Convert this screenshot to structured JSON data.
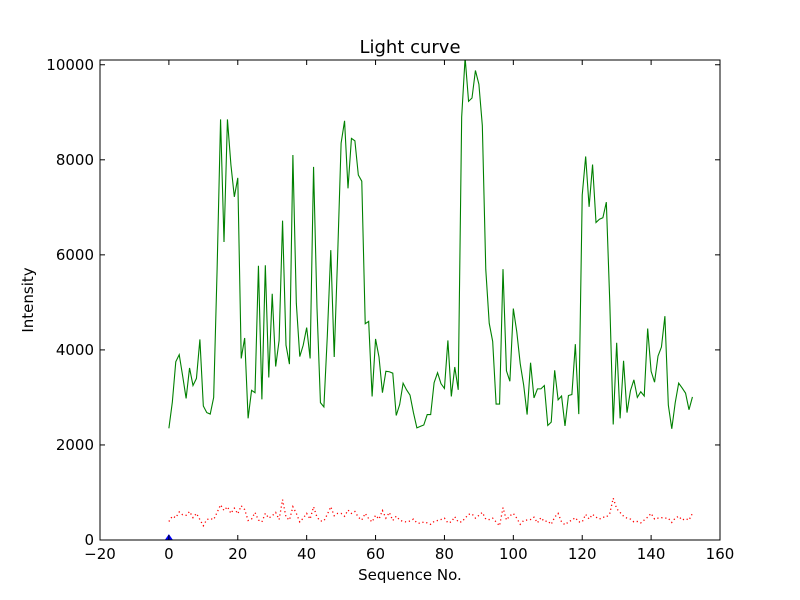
{
  "chart_data": {
    "type": "line",
    "title": "Light curve",
    "xlabel": "Sequence No.",
    "ylabel": "Intensity",
    "xlim": [
      -20,
      160
    ],
    "ylim": [
      0,
      10100
    ],
    "xticks": [
      -20,
      0,
      20,
      40,
      60,
      80,
      100,
      120,
      140,
      160
    ],
    "yticks": [
      0,
      2000,
      4000,
      6000,
      8000,
      10000
    ],
    "grid": false,
    "legend": "none",
    "series": [
      {
        "color": "#008000",
        "style": "solid",
        "x": [
          0,
          1,
          2,
          3,
          4,
          5,
          6,
          7,
          8,
          9,
          10,
          11,
          12,
          13,
          14,
          15,
          16,
          17,
          18,
          19,
          20,
          21,
          22,
          23,
          24,
          25,
          26,
          27,
          28,
          29,
          30,
          31,
          32,
          33,
          34,
          35,
          36,
          37,
          38,
          39,
          40,
          41,
          42,
          43,
          44,
          45,
          46,
          47,
          48,
          49,
          50,
          51,
          52,
          53,
          54,
          55,
          56,
          57,
          58,
          59,
          60,
          61,
          62,
          63,
          64,
          65,
          66,
          67,
          68,
          69,
          70,
          71,
          72,
          73,
          74,
          75,
          76,
          77,
          78,
          79,
          80,
          81,
          82,
          83,
          84,
          85,
          86,
          87,
          88,
          89,
          90,
          91,
          92,
          93,
          94,
          95,
          96,
          97,
          98,
          99,
          100,
          101,
          102,
          103,
          104,
          105,
          106,
          107,
          108,
          109,
          110,
          111,
          112,
          113,
          114,
          115,
          116,
          117,
          118,
          119,
          120,
          121,
          122,
          123,
          124,
          125,
          126,
          127,
          128,
          129,
          130,
          131,
          132,
          133,
          134,
          135,
          136,
          137,
          138,
          139,
          140,
          141,
          142,
          143,
          144,
          145,
          146,
          147,
          148,
          149,
          150,
          151,
          152
        ],
        "values": [
          2350,
          2900,
          3750,
          3900,
          3450,
          2980,
          3620,
          3250,
          3400,
          4220,
          2820,
          2680,
          2650,
          3000,
          5700,
          8850,
          6270,
          8850,
          7900,
          7220,
          7620,
          3820,
          4250,
          2560,
          3150,
          3100,
          5770,
          2960,
          5780,
          3420,
          5180,
          3650,
          4200,
          6720,
          4100,
          3700,
          8100,
          4980,
          3860,
          4100,
          4470,
          3820,
          7850,
          4880,
          2890,
          2800,
          4300,
          6100,
          3850,
          6000,
          8350,
          8820,
          7400,
          8450,
          8400,
          7680,
          7550,
          4550,
          4600,
          3020,
          4230,
          3850,
          3100,
          3550,
          3540,
          3510,
          2620,
          2850,
          3300,
          3160,
          3050,
          2680,
          2360,
          2390,
          2420,
          2640,
          2640,
          3310,
          3520,
          3290,
          3190,
          4200,
          3020,
          3640,
          3160,
          8900,
          10150,
          9230,
          9300,
          9880,
          9590,
          8720,
          5690,
          4560,
          4180,
          2860,
          2860,
          5700,
          3560,
          3340,
          4870,
          4380,
          3710,
          3260,
          2640,
          3730,
          2990,
          3180,
          3180,
          3250,
          2410,
          2480,
          3570,
          2950,
          3030,
          2400,
          3040,
          3060,
          4120,
          2650,
          7260,
          8070,
          7010,
          7900,
          6680,
          6750,
          6780,
          7110,
          5000,
          2430,
          4150,
          2560,
          3770,
          2680,
          3140,
          3370,
          3000,
          3120,
          3030,
          4450,
          3550,
          3320,
          3870,
          4060,
          4710,
          2840,
          2340,
          2890,
          3300,
          3200,
          3090,
          2740,
          3010
        ]
      },
      {
        "color": "#ff0000",
        "style": "dotted",
        "x": [
          0,
          1,
          2,
          3,
          4,
          5,
          6,
          7,
          8,
          9,
          10,
          11,
          12,
          13,
          14,
          15,
          16,
          17,
          18,
          19,
          20,
          21,
          22,
          23,
          24,
          25,
          26,
          27,
          28,
          29,
          30,
          31,
          32,
          33,
          34,
          35,
          36,
          37,
          38,
          39,
          40,
          41,
          42,
          43,
          44,
          45,
          46,
          47,
          48,
          49,
          50,
          51,
          52,
          53,
          54,
          55,
          56,
          57,
          58,
          59,
          60,
          61,
          62,
          63,
          64,
          65,
          66,
          67,
          68,
          69,
          70,
          71,
          72,
          73,
          74,
          75,
          76,
          77,
          78,
          79,
          80,
          81,
          82,
          83,
          84,
          85,
          86,
          87,
          88,
          89,
          90,
          91,
          92,
          93,
          94,
          95,
          96,
          97,
          98,
          99,
          100,
          101,
          102,
          103,
          104,
          105,
          106,
          107,
          108,
          109,
          110,
          111,
          112,
          113,
          114,
          115,
          116,
          117,
          118,
          119,
          120,
          121,
          122,
          123,
          124,
          125,
          126,
          127,
          128,
          129,
          130,
          131,
          132,
          133,
          134,
          135,
          136,
          137,
          138,
          139,
          140,
          141,
          142,
          143,
          144,
          145,
          146,
          147,
          148,
          149,
          150,
          151,
          152
        ],
        "values": [
          390,
          500,
          470,
          590,
          530,
          520,
          600,
          470,
          560,
          430,
          300,
          430,
          450,
          430,
          580,
          740,
          620,
          700,
          560,
          670,
          550,
          720,
          640,
          410,
          440,
          580,
          420,
          380,
          560,
          460,
          510,
          580,
          430,
          850,
          480,
          420,
          700,
          560,
          380,
          460,
          560,
          440,
          700,
          480,
          400,
          400,
          540,
          700,
          510,
          560,
          560,
          500,
          630,
          560,
          600,
          480,
          420,
          560,
          450,
          380,
          520,
          440,
          620,
          460,
          580,
          410,
          500,
          420,
          390,
          380,
          400,
          440,
          360,
          350,
          380,
          360,
          330,
          390,
          410,
          430,
          460,
          360,
          380,
          490,
          380,
          380,
          460,
          540,
          550,
          460,
          520,
          580,
          440,
          430,
          460,
          380,
          300,
          680,
          420,
          510,
          560,
          460,
          330,
          410,
          420,
          430,
          480,
          360,
          470,
          390,
          400,
          330,
          480,
          560,
          380,
          320,
          380,
          420,
          470,
          380,
          380,
          540,
          440,
          540,
          480,
          440,
          480,
          480,
          560,
          880,
          660,
          580,
          500,
          460,
          440,
          380,
          390,
          360,
          420,
          480,
          560,
          440,
          460,
          470,
          460,
          460,
          370,
          460,
          500,
          420,
          450,
          420,
          560
        ]
      },
      {
        "color": "#0000ff",
        "style": "solid",
        "x": [
          0,
          1,
          2,
          3,
          4,
          5,
          6,
          7,
          8,
          9,
          10,
          11,
          12,
          13,
          14,
          15,
          16,
          17,
          18,
          19,
          20,
          21,
          22,
          23,
          24,
          25,
          26,
          27,
          28,
          29,
          30,
          31,
          32,
          33,
          34,
          35,
          36,
          37,
          38,
          39,
          40,
          41,
          42,
          43,
          44,
          45,
          46,
          47,
          48,
          49,
          50,
          51,
          52,
          53,
          54,
          55,
          56,
          57,
          58,
          59,
          60,
          61,
          62,
          63,
          64,
          65,
          66,
          67,
          68,
          69,
          70,
          71,
          72,
          73,
          74,
          75,
          76,
          77,
          78,
          79,
          80,
          81,
          82,
          83,
          84,
          85,
          86,
          87,
          88,
          89,
          90,
          91,
          92,
          93,
          94,
          95,
          96,
          97,
          98,
          99,
          100,
          101,
          102,
          103,
          104,
          105,
          106,
          107,
          108,
          109,
          110,
          111,
          112,
          113,
          114,
          115,
          116,
          117,
          118,
          119,
          120,
          121,
          122,
          123,
          124,
          125,
          126,
          127,
          128,
          129,
          130,
          131,
          132,
          133,
          134,
          135,
          136,
          137,
          138,
          139,
          140,
          141,
          142,
          143,
          144,
          145,
          146,
          147,
          148,
          149,
          150,
          151,
          152
        ],
        "values": [
          0,
          0,
          0,
          0,
          0,
          0,
          0,
          0,
          0,
          0,
          0,
          0,
          0,
          0,
          0,
          0,
          0,
          0,
          0,
          0,
          0,
          0,
          0,
          0,
          0,
          0,
          0,
          0,
          0,
          0,
          0,
          0,
          0,
          0,
          0,
          0,
          0,
          0,
          0,
          0,
          0,
          0,
          0,
          0,
          0,
          0,
          0,
          0,
          0,
          0,
          0,
          0,
          0,
          0,
          0,
          0,
          0,
          0,
          0,
          0,
          0,
          0,
          0,
          0,
          0,
          0,
          0,
          0,
          0,
          0,
          0,
          0,
          0,
          0,
          0,
          0,
          0,
          0,
          0,
          0,
          0,
          0,
          0,
          0,
          0,
          0,
          0,
          0,
          0,
          0,
          0,
          0,
          0,
          0,
          0,
          0,
          0,
          0,
          0,
          0,
          0,
          0,
          0,
          0,
          0,
          0,
          0,
          0,
          0,
          0,
          0,
          0,
          0,
          0,
          0,
          0,
          0,
          0,
          0,
          0,
          0,
          0,
          0,
          0,
          0,
          0,
          0,
          0,
          0,
          0,
          0,
          0,
          0,
          0,
          0,
          0,
          0,
          0,
          0,
          0,
          0,
          0,
          0,
          0,
          0,
          0,
          0,
          0,
          0,
          0,
          0,
          0,
          0
        ]
      }
    ],
    "markers": [
      {
        "x": 0,
        "y": 0,
        "color": "#0000ff",
        "shape": "triangle"
      }
    ]
  }
}
